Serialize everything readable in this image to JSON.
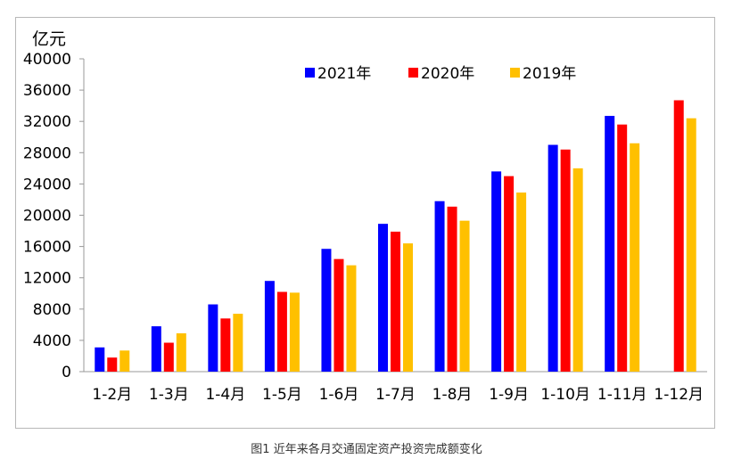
{
  "caption": "图1 近年来各月交通固定资产投资完成额变化",
  "chart_data": {
    "type": "bar",
    "title": "",
    "xlabel": "",
    "ylabel": "亿元",
    "ylim": [
      0,
      40000
    ],
    "yticks": [
      0,
      4000,
      8000,
      12000,
      16000,
      20000,
      24000,
      28000,
      32000,
      36000,
      40000
    ],
    "grid": false,
    "legend_position": "top",
    "categories": [
      "1-2月",
      "1-3月",
      "1-4月",
      "1-5月",
      "1-6月",
      "1-7月",
      "1-8月",
      "1-9月",
      "1-10月",
      "1-11月",
      "1-12月"
    ],
    "series": [
      {
        "name": "2021年",
        "color": "#0000FF",
        "values": [
          3100,
          5800,
          8600,
          11600,
          15700,
          18900,
          21800,
          25600,
          29000,
          32700,
          null
        ]
      },
      {
        "name": "2020年",
        "color": "#FF0000",
        "values": [
          1800,
          3700,
          6800,
          10200,
          14400,
          17900,
          21100,
          25000,
          28400,
          31600,
          34700
        ]
      },
      {
        "name": "2019年",
        "color": "#FFC000",
        "values": [
          2700,
          4900,
          7400,
          10100,
          13600,
          16400,
          19300,
          22900,
          26000,
          29200,
          32400
        ]
      }
    ]
  }
}
